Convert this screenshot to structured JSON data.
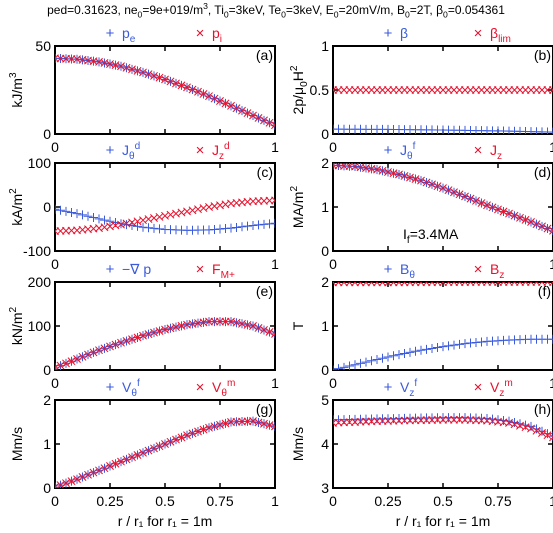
{
  "figure": {
    "title_parts": [
      {
        "t": "ped=0.31623, ne"
      },
      {
        "t": "0",
        "s": "sub"
      },
      {
        "t": "=9e+019/m"
      },
      {
        "t": "3",
        "s": "sup"
      },
      {
        "t": ", Ti"
      },
      {
        "t": "0",
        "s": "sub"
      },
      {
        "t": "=3keV, Te"
      },
      {
        "t": "0",
        "s": "sub"
      },
      {
        "t": "=3keV, E"
      },
      {
        "t": "0",
        "s": "sub"
      },
      {
        "t": "=20mV/m, B"
      },
      {
        "t": "0",
        "s": "sub"
      },
      {
        "t": "=2T, β"
      },
      {
        "t": "0",
        "s": "sub"
      },
      {
        "t": "=0.054361"
      }
    ],
    "xlabel": "r / r₁ for r₁ = 1m",
    "colors": {
      "blue": "#3b5bdb",
      "red": "#e8112d",
      "axis": "#000000"
    }
  },
  "chart_data": [
    {
      "type": "scatter",
      "panel": "(a)",
      "col": 0,
      "row": 0,
      "ylabel_parts": [
        {
          "t": "kJ/m"
        },
        {
          "t": "3",
          "s": "sup"
        }
      ],
      "ylim": [
        0,
        50
      ],
      "yticks": [
        0,
        50
      ],
      "xlim": [
        0,
        1
      ],
      "xticks": [
        0,
        0.25,
        0.5,
        0.75,
        1
      ],
      "xticklabels": [
        "0",
        "",
        "",
        "",
        "1"
      ],
      "series": [
        {
          "name_parts": [
            {
              "t": "p"
            },
            {
              "t": "e",
              "s": "sub"
            }
          ],
          "marker": "plus",
          "color": "blue",
          "x": [
            0,
            0.1,
            0.2,
            0.3,
            0.4,
            0.5,
            0.6,
            0.7,
            0.8,
            0.9,
            1.0
          ],
          "values": [
            43,
            42.5,
            41,
            38.5,
            35,
            31,
            26.5,
            21.5,
            16,
            10.5,
            5
          ]
        },
        {
          "name_parts": [
            {
              "t": "p"
            },
            {
              "t": "i",
              "s": "sub"
            }
          ],
          "marker": "cross",
          "color": "red",
          "x": [
            0,
            0.1,
            0.2,
            0.3,
            0.4,
            0.5,
            0.6,
            0.7,
            0.8,
            0.9,
            1.0
          ],
          "values": [
            43,
            42.5,
            41,
            38.5,
            35,
            31,
            26.5,
            21.5,
            16,
            10.5,
            5
          ]
        }
      ]
    },
    {
      "type": "scatter",
      "panel": "(b)",
      "col": 1,
      "row": 0,
      "ylabel_parts": [
        {
          "t": "2p/μ"
        },
        {
          "t": "0",
          "s": "sub"
        },
        {
          "t": "H"
        },
        {
          "t": "2",
          "s": "sup"
        }
      ],
      "ylim": [
        0,
        1
      ],
      "yticks": [
        0,
        0.5,
        1
      ],
      "xlim": [
        0,
        1
      ],
      "xticks": [
        0,
        0.25,
        0.5,
        0.75,
        1
      ],
      "xticklabels": [
        "0",
        "",
        "",
        "",
        "1"
      ],
      "series": [
        {
          "name_parts": [
            {
              "t": "β"
            }
          ],
          "marker": "plus",
          "color": "blue",
          "x": [
            0,
            0.25,
            0.5,
            0.75,
            1.0
          ],
          "values": [
            0.055,
            0.052,
            0.045,
            0.035,
            0.022
          ]
        },
        {
          "name_parts": [
            {
              "t": "β"
            },
            {
              "t": "lim",
              "s": "sub"
            }
          ],
          "marker": "cross",
          "color": "red",
          "x": [
            0,
            1
          ],
          "values": [
            0.5,
            0.5
          ]
        }
      ]
    },
    {
      "type": "scatter",
      "panel": "(c)",
      "col": 0,
      "row": 1,
      "ylabel_parts": [
        {
          "t": "kA/m"
        },
        {
          "t": "2",
          "s": "sup"
        }
      ],
      "ylim": [
        -100,
        100
      ],
      "yticks": [
        -100,
        0,
        100
      ],
      "xlim": [
        0,
        1
      ],
      "xticks": [
        0,
        0.25,
        0.5,
        0.75,
        1
      ],
      "xticklabels": [
        "0",
        "",
        "",
        "",
        "1"
      ],
      "series": [
        {
          "name_parts": [
            {
              "t": "J"
            },
            {
              "t": "θ",
              "s": "sub"
            },
            {
              "t": "d",
              "s": "sup"
            }
          ],
          "marker": "plus",
          "color": "blue",
          "x": [
            0,
            0.1,
            0.2,
            0.3,
            0.4,
            0.5,
            0.6,
            0.7,
            0.8,
            0.9,
            1.0
          ],
          "values": [
            -5,
            -15,
            -27,
            -38,
            -46,
            -51,
            -53,
            -52,
            -48,
            -42,
            -37
          ]
        },
        {
          "name_parts": [
            {
              "t": "J"
            },
            {
              "t": "z",
              "s": "sub"
            },
            {
              "t": "d",
              "s": "sup"
            }
          ],
          "marker": "cross",
          "color": "red",
          "x": [
            0,
            0.1,
            0.2,
            0.3,
            0.4,
            0.5,
            0.6,
            0.7,
            0.8,
            0.9,
            1.0
          ],
          "values": [
            -55,
            -53,
            -48,
            -40,
            -30,
            -20,
            -10,
            0,
            8,
            13,
            15
          ]
        }
      ]
    },
    {
      "type": "scatter",
      "panel": "(d)",
      "col": 1,
      "row": 1,
      "ylabel_parts": [
        {
          "t": "MA/m"
        },
        {
          "t": "2",
          "s": "sup"
        }
      ],
      "ylim": [
        0,
        2
      ],
      "yticks": [
        0,
        1,
        2
      ],
      "xlim": [
        0,
        1
      ],
      "xticks": [
        0,
        0.25,
        0.5,
        0.75,
        1
      ],
      "xticklabels": [
        "0",
        "",
        "",
        "",
        "1"
      ],
      "annotation_parts": [
        {
          "t": "I"
        },
        {
          "t": "f",
          "s": "sub"
        },
        {
          "t": "=3.4MA"
        }
      ],
      "series": [
        {
          "name_parts": [
            {
              "t": "J"
            },
            {
              "t": "θ",
              "s": "sub"
            },
            {
              "t": "f",
              "s": "sup"
            }
          ],
          "marker": "plus",
          "color": "blue",
          "x": [
            0,
            0.1,
            0.2,
            0.3,
            0.4,
            0.5,
            0.6,
            0.7,
            0.8,
            0.9,
            1.0
          ],
          "values": [
            1.95,
            1.92,
            1.85,
            1.74,
            1.6,
            1.43,
            1.24,
            1.04,
            0.85,
            0.66,
            0.46
          ]
        },
        {
          "name_parts": [
            {
              "t": "J"
            },
            {
              "t": "z",
              "s": "sub"
            }
          ],
          "marker": "cross",
          "color": "red",
          "x": [
            0,
            0.1,
            0.2,
            0.3,
            0.4,
            0.5,
            0.6,
            0.7,
            0.8,
            0.9,
            1.0
          ],
          "values": [
            1.95,
            1.92,
            1.85,
            1.74,
            1.6,
            1.43,
            1.24,
            1.04,
            0.85,
            0.66,
            0.46
          ]
        }
      ]
    },
    {
      "type": "scatter",
      "panel": "(e)",
      "col": 0,
      "row": 2,
      "ylabel_parts": [
        {
          "t": "kN/m"
        },
        {
          "t": "2",
          "s": "sup"
        }
      ],
      "ylim": [
        0,
        200
      ],
      "yticks": [
        0,
        100,
        200
      ],
      "xlim": [
        0,
        1
      ],
      "xticks": [
        0,
        0.25,
        0.5,
        0.75,
        1
      ],
      "xticklabels": [
        "0",
        "",
        "",
        "",
        "1"
      ],
      "series": [
        {
          "name_parts": [
            {
              "t": "−∇ p"
            }
          ],
          "marker": "plus",
          "color": "blue",
          "x": [
            0,
            0.1,
            0.2,
            0.3,
            0.4,
            0.5,
            0.6,
            0.7,
            0.8,
            0.9,
            1.0
          ],
          "values": [
            5,
            25,
            45,
            62,
            78,
            92,
            103,
            110,
            110,
            100,
            82
          ]
        },
        {
          "name_parts": [
            {
              "t": "F"
            },
            {
              "t": "M+",
              "s": "sub"
            }
          ],
          "marker": "cross",
          "color": "red",
          "x": [
            0,
            0.1,
            0.2,
            0.3,
            0.4,
            0.5,
            0.6,
            0.7,
            0.8,
            0.9,
            1.0
          ],
          "values": [
            5,
            25,
            45,
            62,
            78,
            92,
            103,
            110,
            110,
            100,
            82
          ]
        }
      ]
    },
    {
      "type": "scatter",
      "panel": "(f)",
      "col": 1,
      "row": 2,
      "ylabel_parts": [
        {
          "t": "T"
        }
      ],
      "ylim": [
        0,
        2
      ],
      "yticks": [
        0,
        1,
        2
      ],
      "xlim": [
        0,
        1
      ],
      "xticks": [
        0,
        0.25,
        0.5,
        0.75,
        1
      ],
      "xticklabels": [
        "0",
        "",
        "",
        "",
        "1"
      ],
      "series": [
        {
          "name_parts": [
            {
              "t": "B"
            },
            {
              "t": "θ",
              "s": "sub"
            }
          ],
          "marker": "plus",
          "color": "blue",
          "x": [
            0,
            0.1,
            0.2,
            0.3,
            0.4,
            0.5,
            0.6,
            0.7,
            0.8,
            0.9,
            1.0
          ],
          "values": [
            0,
            0.12,
            0.24,
            0.35,
            0.45,
            0.53,
            0.6,
            0.65,
            0.68,
            0.7,
            0.7
          ]
        },
        {
          "name_parts": [
            {
              "t": "B"
            },
            {
              "t": "z",
              "s": "sub"
            }
          ],
          "marker": "cross",
          "color": "red",
          "x": [
            0,
            0.25,
            0.5,
            0.75,
            1.0
          ],
          "values": [
            1.99,
            1.99,
            1.995,
            2.0,
            2.0
          ]
        }
      ]
    },
    {
      "type": "scatter",
      "panel": "(g)",
      "col": 0,
      "row": 3,
      "ylabel_parts": [
        {
          "t": "Mm/s"
        }
      ],
      "ylim": [
        0,
        2
      ],
      "yticks": [
        0,
        1,
        2
      ],
      "xlim": [
        0,
        1
      ],
      "xticks": [
        0,
        0.25,
        0.5,
        0.75,
        1
      ],
      "xticklabels": [
        "0",
        "0.25",
        "0.5",
        "0.75",
        "1"
      ],
      "series": [
        {
          "name_parts": [
            {
              "t": "V"
            },
            {
              "t": "θ",
              "s": "sub"
            },
            {
              "t": "f",
              "s": "sup"
            }
          ],
          "marker": "plus",
          "color": "blue",
          "x": [
            0,
            0.1,
            0.2,
            0.3,
            0.4,
            0.5,
            0.6,
            0.7,
            0.8,
            0.9,
            1.0
          ],
          "values": [
            0.02,
            0.2,
            0.4,
            0.6,
            0.8,
            1.0,
            1.2,
            1.37,
            1.5,
            1.52,
            1.4
          ]
        },
        {
          "name_parts": [
            {
              "t": "V"
            },
            {
              "t": "θ",
              "s": "sub"
            },
            {
              "t": "m",
              "s": "sup"
            }
          ],
          "marker": "cross",
          "color": "red",
          "x": [
            0,
            0.1,
            0.2,
            0.3,
            0.4,
            0.5,
            0.6,
            0.7,
            0.8,
            0.9,
            1.0
          ],
          "values": [
            0.02,
            0.2,
            0.4,
            0.6,
            0.8,
            1.0,
            1.2,
            1.37,
            1.5,
            1.52,
            1.4
          ]
        }
      ]
    },
    {
      "type": "scatter",
      "panel": "(h)",
      "col": 1,
      "row": 3,
      "ylabel_parts": [
        {
          "t": "Mm/s"
        }
      ],
      "ylim": [
        3,
        5
      ],
      "yticks": [
        3,
        4,
        5
      ],
      "xlim": [
        0,
        1
      ],
      "xticks": [
        0,
        0.25,
        0.5,
        0.75,
        1
      ],
      "xticklabels": [
        "0",
        "0.25",
        "0.5",
        "0.75",
        "1"
      ],
      "series": [
        {
          "name_parts": [
            {
              "t": "V"
            },
            {
              "t": "z",
              "s": "sub"
            },
            {
              "t": "f",
              "s": "sup"
            }
          ],
          "marker": "plus",
          "color": "blue",
          "x": [
            0,
            0.1,
            0.2,
            0.3,
            0.4,
            0.5,
            0.6,
            0.7,
            0.8,
            0.9,
            1.0
          ],
          "values": [
            4.55,
            4.56,
            4.57,
            4.58,
            4.59,
            4.6,
            4.6,
            4.58,
            4.52,
            4.4,
            4.18
          ]
        },
        {
          "name_parts": [
            {
              "t": "V"
            },
            {
              "t": "z",
              "s": "sub"
            },
            {
              "t": "m",
              "s": "sup"
            }
          ],
          "marker": "cross",
          "color": "red",
          "x": [
            0,
            0.1,
            0.2,
            0.3,
            0.4,
            0.5,
            0.6,
            0.7,
            0.8,
            0.9,
            1.0
          ],
          "values": [
            4.48,
            4.5,
            4.52,
            4.53,
            4.54,
            4.55,
            4.55,
            4.53,
            4.48,
            4.35,
            4.15
          ]
        }
      ]
    }
  ]
}
